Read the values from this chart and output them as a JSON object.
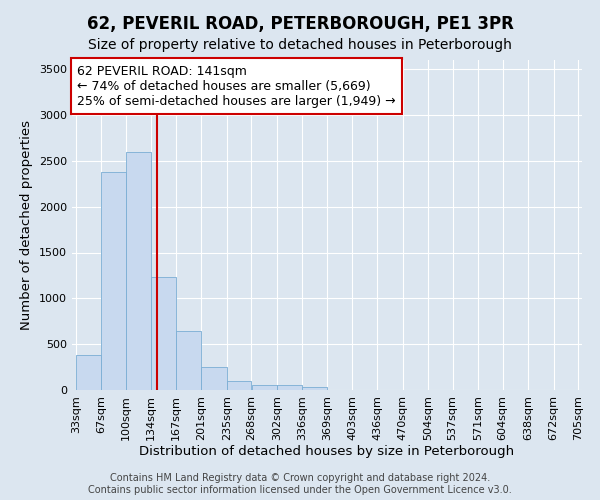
{
  "title": "62, PEVERIL ROAD, PETERBOROUGH, PE1 3PR",
  "subtitle": "Size of property relative to detached houses in Peterborough",
  "xlabel": "Distribution of detached houses by size in Peterborough",
  "ylabel": "Number of detached properties",
  "footer_line1": "Contains HM Land Registry data © Crown copyright and database right 2024.",
  "footer_line2": "Contains public sector information licensed under the Open Government Licence v3.0.",
  "bins": [
    33,
    67,
    100,
    134,
    167,
    201,
    235,
    268,
    302,
    336,
    369,
    403,
    436,
    470,
    504,
    537,
    571,
    604,
    638,
    672,
    705
  ],
  "bar_heights": [
    380,
    2380,
    2600,
    1230,
    640,
    250,
    100,
    60,
    50,
    30,
    0,
    0,
    0,
    0,
    0,
    0,
    0,
    0,
    0,
    0
  ],
  "bar_color": "#c8d9ef",
  "bar_edge_color": "#7aadd4",
  "vline_x": 141,
  "vline_color": "#cc0000",
  "annotation_text": "62 PEVERIL ROAD: 141sqm\n← 74% of detached houses are smaller (5,669)\n25% of semi-detached houses are larger (1,949) →",
  "annotation_box_color": "#ffffff",
  "annotation_box_edge": "#cc0000",
  "ylim": [
    0,
    3600
  ],
  "yticks": [
    0,
    500,
    1000,
    1500,
    2000,
    2500,
    3000,
    3500
  ],
  "background_color": "#dce6f0",
  "plot_bg_color": "#dce6f0",
  "grid_color": "#ffffff",
  "title_fontsize": 12,
  "subtitle_fontsize": 10,
  "axis_label_fontsize": 9.5,
  "tick_fontsize": 8,
  "annotation_fontsize": 9,
  "footer_fontsize": 7
}
